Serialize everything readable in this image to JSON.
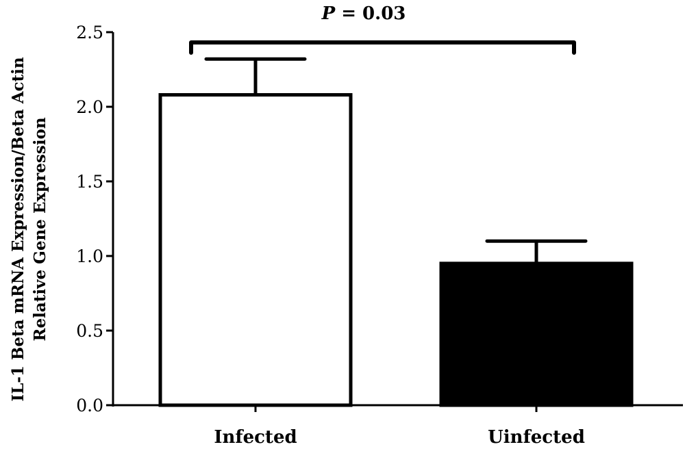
{
  "chart_data": {
    "type": "bar",
    "categories": [
      "Infected",
      "Uinfected"
    ],
    "values": [
      2.08,
      0.95
    ],
    "error_upper": [
      2.32,
      1.1
    ],
    "bar_fill": [
      "#ffffff",
      "#000000"
    ],
    "ylabel_lines": [
      "IL-1 Beta mRNA Expression/Beta Actin",
      "Relative Gene Expression"
    ],
    "ylim": [
      0,
      2.5
    ],
    "yticks": [
      "0.0",
      "0.5",
      "1.0",
      "1.5",
      "2.0",
      "2.5"
    ],
    "grid": false,
    "annotation": {
      "p_symbol": "P",
      "p_rest": " = 0.03"
    }
  }
}
